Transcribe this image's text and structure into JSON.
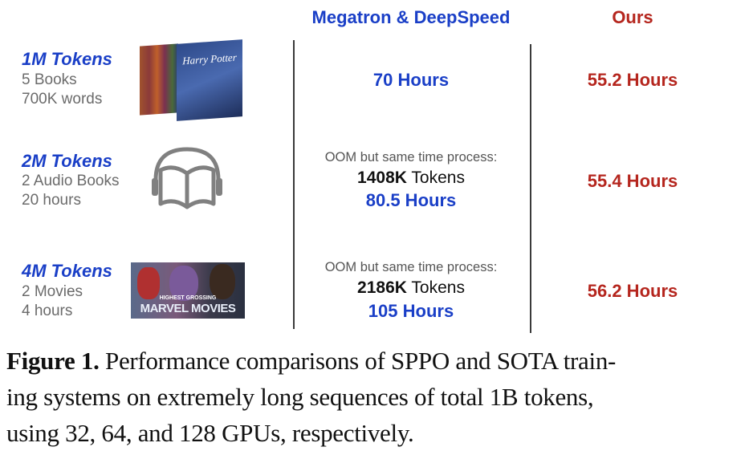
{
  "header": {
    "baseline": "Megatron & DeepSpeed",
    "ours": "Ours"
  },
  "colors": {
    "blue": "#1a3fc7",
    "red": "#b5261e",
    "gray": "#6b6b6b"
  },
  "rows": [
    {
      "tokens": "1M Tokens",
      "line1": "5 Books",
      "line2": "700K words",
      "icon": "harry-potter-books-image",
      "image_text": "Harry Potter",
      "baseline": {
        "value": "70 Hours"
      },
      "ours": "55.2 Hours"
    },
    {
      "tokens": "2M Tokens",
      "line1": "2 Audio Books",
      "line2": "20 hours",
      "icon": "audiobook-icon",
      "baseline": {
        "note": "OOM but same time process:",
        "tokens_bold": "1408K",
        "tokens_suffix": " Tokens",
        "value": "80.5 Hours"
      },
      "ours": "55.4 Hours"
    },
    {
      "tokens": "4M Tokens",
      "line1": "2 Movies",
      "line2": "4 hours",
      "icon": "marvel-movies-image",
      "image_text_1": "HIGHEST GROSSING",
      "image_text_2": "MARVEL MOVIES",
      "baseline": {
        "note": "OOM but same time process:",
        "tokens_bold": "2186K",
        "tokens_suffix": " Tokens",
        "value": "105 Hours"
      },
      "ours": "56.2 Hours"
    }
  ],
  "caption": {
    "label": "Figure 1.",
    "lines": [
      " Performance comparisons of SPPO and SOTA train-",
      "ing systems on extremely long sequences of total 1B tokens,",
      "using 32, 64, and 128 GPUs, respectively."
    ]
  }
}
